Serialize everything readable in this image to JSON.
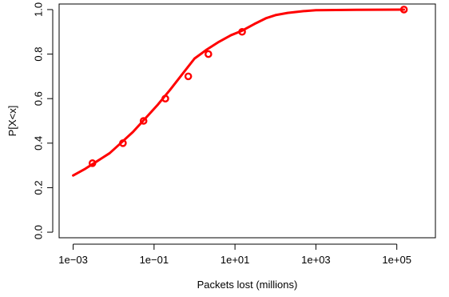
{
  "chart_data": {
    "type": "line",
    "title": "",
    "xlabel": "Packets lost (millions)",
    "ylabel": "P[X<x]",
    "x_scale": "log10",
    "xlim": [
      0.00045,
      900000
    ],
    "ylim": [
      -0.025,
      1.025
    ],
    "x_ticks": [
      0.001,
      0.1,
      10,
      1000,
      100000
    ],
    "x_tick_labels": [
      "1e−03",
      "1e−01",
      "1e+01",
      "1e+03",
      "1e+05"
    ],
    "y_ticks": [
      0,
      0.2,
      0.4,
      0.6,
      0.8,
      1
    ],
    "y_tick_labels": [
      "0.0",
      "0.2",
      "0.4",
      "0.6",
      "0.8",
      "1.0"
    ],
    "grid": false,
    "line_color": "#ff0000",
    "series": [
      {
        "curve": {
          "x": [
            0.001,
            0.002,
            0.004,
            0.008,
            0.015,
            0.03,
            0.06,
            0.12,
            0.25,
            0.5,
            1,
            2,
            4,
            8,
            15,
            30,
            60,
            100,
            200,
            500,
            1000,
            10000,
            150000
          ],
          "y": [
            0.255,
            0.285,
            0.32,
            0.355,
            0.4,
            0.45,
            0.51,
            0.57,
            0.64,
            0.71,
            0.78,
            0.82,
            0.855,
            0.885,
            0.905,
            0.935,
            0.962,
            0.975,
            0.985,
            0.993,
            0.997,
            0.999,
            1.0
          ]
        },
        "markers": {
          "x": [
            0.003,
            0.017,
            0.055,
            0.19,
            0.7,
            2.2,
            15,
            150000
          ],
          "y": [
            0.31,
            0.4,
            0.5,
            0.6,
            0.7,
            0.8,
            0.9,
            1.0
          ]
        }
      }
    ]
  }
}
